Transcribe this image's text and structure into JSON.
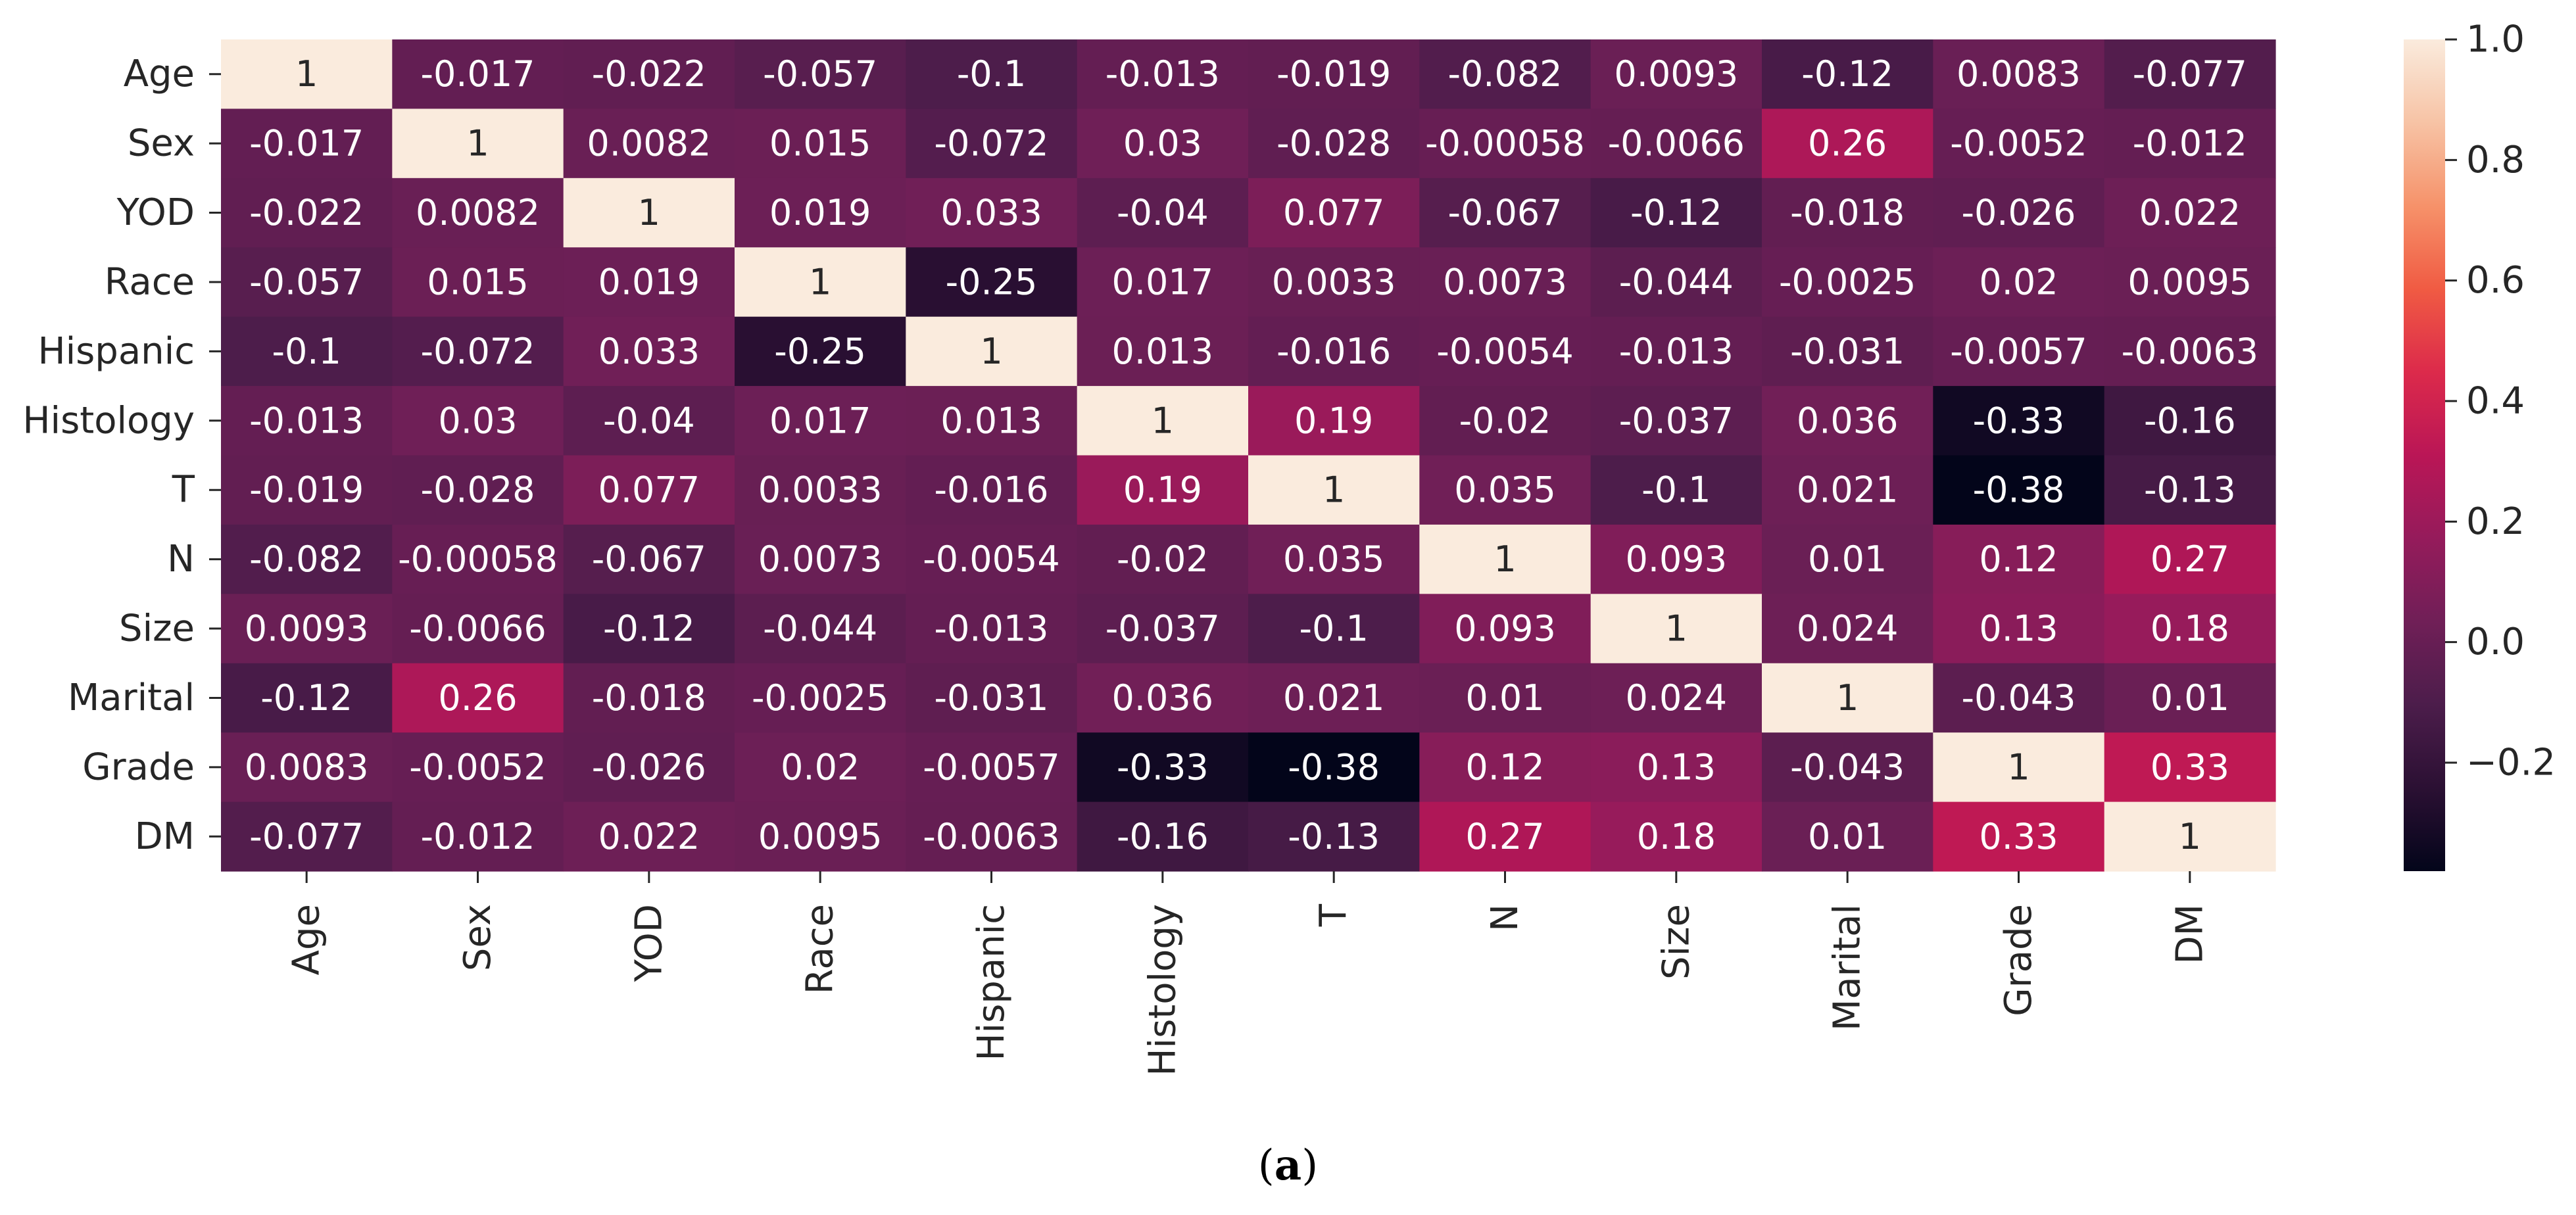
{
  "chart_data": {
    "type": "heatmap",
    "variables": [
      "Age",
      "Sex",
      "YOD",
      "Race",
      "Hispanic",
      "Histology",
      "T",
      "N",
      "Size",
      "Marital",
      "Grade",
      "DM"
    ],
    "matrix": [
      [
        "1",
        "-0.017",
        "-0.022",
        "-0.057",
        "-0.1",
        "-0.013",
        "-0.019",
        "-0.082",
        "0.0093",
        "-0.12",
        "0.0083",
        "-0.077"
      ],
      [
        "-0.017",
        "1",
        "0.0082",
        "0.015",
        "-0.072",
        "0.03",
        "-0.028",
        "-0.00058",
        "-0.0066",
        "0.26",
        "-0.0052",
        "-0.012"
      ],
      [
        "-0.022",
        "0.0082",
        "1",
        "0.019",
        "0.033",
        "-0.04",
        "0.077",
        "-0.067",
        "-0.12",
        "-0.018",
        "-0.026",
        "0.022"
      ],
      [
        "-0.057",
        "0.015",
        "0.019",
        "1",
        "-0.25",
        "0.017",
        "0.0033",
        "0.0073",
        "-0.044",
        "-0.0025",
        "0.02",
        "0.0095"
      ],
      [
        "-0.1",
        "-0.072",
        "0.033",
        "-0.25",
        "1",
        "0.013",
        "-0.016",
        "-0.0054",
        "-0.013",
        "-0.031",
        "-0.0057",
        "-0.0063"
      ],
      [
        "-0.013",
        "0.03",
        "-0.04",
        "0.017",
        "0.013",
        "1",
        "0.19",
        "-0.02",
        "-0.037",
        "0.036",
        "-0.33",
        "-0.16"
      ],
      [
        "-0.019",
        "-0.028",
        "0.077",
        "0.0033",
        "-0.016",
        "0.19",
        "1",
        "0.035",
        "-0.1",
        "0.021",
        "-0.38",
        "-0.13"
      ],
      [
        "-0.082",
        "-0.00058",
        "-0.067",
        "0.0073",
        "-0.0054",
        "-0.02",
        "0.035",
        "1",
        "0.093",
        "0.01",
        "0.12",
        "0.27"
      ],
      [
        "0.0093",
        "-0.0066",
        "-0.12",
        "-0.044",
        "-0.013",
        "-0.037",
        "-0.1",
        "0.093",
        "1",
        "0.024",
        "0.13",
        "0.18"
      ],
      [
        "-0.12",
        "0.26",
        "-0.018",
        "-0.0025",
        "-0.031",
        "0.036",
        "0.021",
        "0.01",
        "0.024",
        "1",
        "-0.043",
        "0.01"
      ],
      [
        "0.0083",
        "-0.0052",
        "-0.026",
        "0.02",
        "-0.0057",
        "-0.33",
        "-0.38",
        "0.12",
        "0.13",
        "-0.043",
        "1",
        "0.33"
      ],
      [
        "-0.077",
        "-0.012",
        "0.022",
        "0.0095",
        "-0.0063",
        "-0.16",
        "-0.13",
        "0.27",
        "0.18",
        "0.01",
        "0.33",
        "1"
      ]
    ],
    "colorbar": {
      "vmin": -0.38,
      "vmax": 1.0,
      "ticks": [
        1.0,
        0.8,
        0.6,
        0.4,
        0.2,
        0.0,
        -0.2
      ],
      "tick_labels": [
        "1.0",
        "0.8",
        "0.6",
        "0.4",
        "0.2",
        "0.0",
        "−0.2"
      ],
      "colormap": "rocket",
      "colors": [
        "#03051a",
        "#2b1033",
        "#4c1d4b",
        "#701f57",
        "#951b5b",
        "#ba1656",
        "#dc2a4b",
        "#f05b43",
        "#f6926a",
        "#f7c3a5",
        "#faebdd"
      ]
    },
    "annotation_light_color": "#ffffff",
    "annotation_dark_color": "#262626",
    "title": "",
    "xlabel": "",
    "ylabel": ""
  },
  "caption": {
    "label": "a"
  }
}
